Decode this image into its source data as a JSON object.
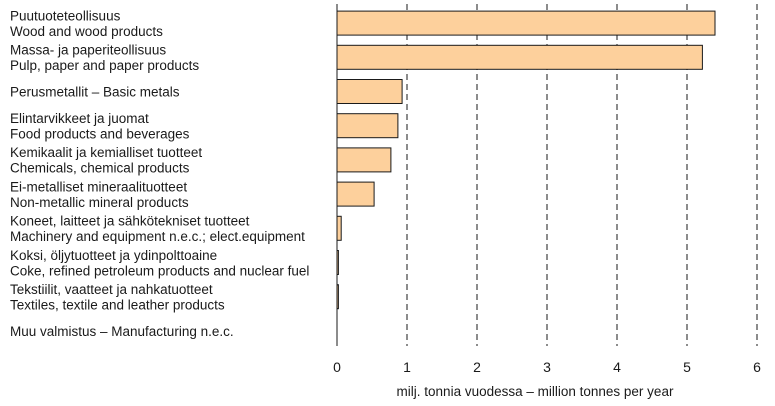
{
  "chart_data": {
    "type": "bar",
    "orientation": "horizontal",
    "categories": [
      [
        "Puutuoteteollisuus",
        "Wood and wood products"
      ],
      [
        "Massa- ja paperiteollisuus",
        "Pulp, paper and paper products"
      ],
      [
        "Perusmetallit – Basic metals"
      ],
      [
        "Elintarvikkeet ja juomat",
        "Food products and beverages"
      ],
      [
        "Kemikaalit ja kemialliset tuotteet",
        "Chemicals, chemical products"
      ],
      [
        "Ei-metalliset mineraalituotteet",
        "Non-metallic mineral products"
      ],
      [
        "Koneet, laitteet ja sähkötekniset tuotteet",
        "Machinery and equipment n.e.c.; elect.equipment"
      ],
      [
        "Koksi, öljytuotteet ja ydinpolttoaine",
        "Coke, refined petroleum products and nuclear fuel"
      ],
      [
        "Tekstiilit, vaatteet ja nahkatuotteet",
        "Textiles, textile and leather products"
      ],
      [
        "Muu valmistus – Manufacturing n.e.c."
      ]
    ],
    "values": [
      5.4,
      5.22,
      0.93,
      0.87,
      0.77,
      0.53,
      0.06,
      0.02,
      0.02,
      0
    ],
    "title": "",
    "xlabel": "milj. tonnia vuodessa – million tonnes per year",
    "ylabel": "",
    "xlim": [
      0,
      6
    ],
    "xticks": [
      "0",
      "1",
      "2",
      "3",
      "4",
      "5",
      "6"
    ],
    "grid": "vertical dashed",
    "bar_color": "#fdd09c",
    "bar_edge_color": "#1a1a1a"
  }
}
